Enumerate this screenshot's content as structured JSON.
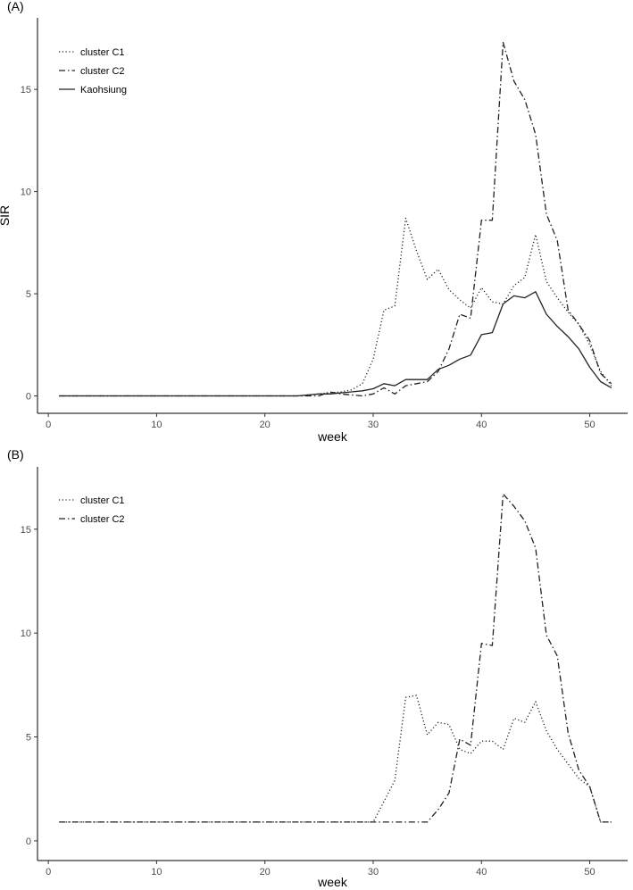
{
  "chart_data": [
    {
      "type": "line",
      "panel_label": "(A)",
      "xlabel": "week",
      "ylabel": "SIR",
      "xlim": [
        -1,
        53.5
      ],
      "ylim": [
        -0.85,
        18.5
      ],
      "xticks": [
        0,
        10,
        20,
        30,
        40,
        50
      ],
      "yticks": [
        0,
        5,
        10,
        15
      ],
      "grid": false,
      "legend_position": "top-left",
      "series": [
        {
          "name": "cluster C1",
          "style": "dotted",
          "x": [
            1,
            2,
            3,
            4,
            5,
            6,
            7,
            8,
            9,
            10,
            11,
            12,
            13,
            14,
            15,
            16,
            17,
            18,
            19,
            20,
            21,
            22,
            23,
            24,
            25,
            26,
            27,
            28,
            29,
            30,
            31,
            32,
            33,
            34,
            35,
            36,
            37,
            38,
            39,
            40,
            41,
            42,
            43,
            44,
            45,
            46,
            47,
            48,
            49,
            50,
            51,
            52
          ],
          "y": [
            0,
            0,
            0,
            0,
            0,
            0,
            0,
            0,
            0,
            0,
            0,
            0,
            0,
            0,
            0,
            0,
            0,
            0,
            0,
            0,
            0,
            0,
            0,
            0.05,
            0.1,
            0.15,
            0.2,
            0.3,
            0.6,
            1.8,
            4.2,
            4.4,
            8.7,
            7.1,
            5.7,
            6.2,
            5.2,
            4.7,
            4.3,
            5.3,
            4.6,
            4.5,
            5.4,
            5.8,
            7.9,
            5.6,
            4.8,
            4.1,
            3.5,
            2.5,
            1.2,
            0.5
          ]
        },
        {
          "name": "cluster C2",
          "style": "dotdash",
          "x": [
            1,
            2,
            3,
            4,
            5,
            6,
            7,
            8,
            9,
            10,
            11,
            12,
            13,
            14,
            15,
            16,
            17,
            18,
            19,
            20,
            21,
            22,
            23,
            24,
            25,
            26,
            27,
            28,
            29,
            30,
            31,
            32,
            33,
            34,
            35,
            36,
            37,
            38,
            39,
            40,
            41,
            42,
            43,
            44,
            45,
            46,
            47,
            48,
            49,
            50,
            51,
            52
          ],
          "y": [
            0,
            0,
            0,
            0,
            0,
            0,
            0,
            0,
            0,
            0,
            0,
            0,
            0,
            0,
            0,
            0,
            0,
            0,
            0,
            0,
            0,
            0,
            0,
            0,
            0,
            0.2,
            0.1,
            0.05,
            0,
            0.1,
            0.4,
            0.1,
            0.5,
            0.6,
            0.7,
            1.2,
            2.3,
            4.0,
            3.8,
            8.6,
            8.6,
            17.3,
            15.4,
            14.5,
            12.8,
            8.9,
            7.6,
            4.2,
            3.5,
            2.7,
            1.1,
            0.6
          ]
        },
        {
          "name": "Kaohsiung",
          "style": "solid",
          "x": [
            1,
            2,
            3,
            4,
            5,
            6,
            7,
            8,
            9,
            10,
            11,
            12,
            13,
            14,
            15,
            16,
            17,
            18,
            19,
            20,
            21,
            22,
            23,
            24,
            25,
            26,
            27,
            28,
            29,
            30,
            31,
            32,
            33,
            34,
            35,
            36,
            37,
            38,
            39,
            40,
            41,
            42,
            43,
            44,
            45,
            46,
            47,
            48,
            49,
            50,
            51,
            52
          ],
          "y": [
            0,
            0,
            0,
            0,
            0,
            0,
            0,
            0,
            0,
            0,
            0,
            0,
            0,
            0,
            0,
            0,
            0,
            0,
            0,
            0,
            0,
            0,
            0,
            0.05,
            0.1,
            0.1,
            0.15,
            0.2,
            0.25,
            0.35,
            0.6,
            0.5,
            0.8,
            0.8,
            0.8,
            1.3,
            1.5,
            1.8,
            2.0,
            3.0,
            3.1,
            4.5,
            4.9,
            4.8,
            5.1,
            4.0,
            3.4,
            2.9,
            2.3,
            1.4,
            0.7,
            0.4
          ]
        }
      ]
    },
    {
      "type": "line",
      "panel_label": "(B)",
      "xlabel": "week",
      "ylabel": "",
      "xlim": [
        -1,
        53.5
      ],
      "ylim": [
        -0.95,
        18.0
      ],
      "xticks": [
        0,
        10,
        20,
        30,
        40,
        50
      ],
      "yticks": [
        0,
        5,
        10,
        15
      ],
      "grid": false,
      "legend_position": "top-left",
      "series": [
        {
          "name": "cluster C1",
          "style": "dotted",
          "x": [
            1,
            2,
            3,
            4,
            5,
            6,
            7,
            8,
            9,
            10,
            11,
            12,
            13,
            14,
            15,
            16,
            17,
            18,
            19,
            20,
            21,
            22,
            23,
            24,
            25,
            26,
            27,
            28,
            29,
            30,
            31,
            32,
            33,
            34,
            35,
            36,
            37,
            38,
            39,
            40,
            41,
            42,
            43,
            44,
            45,
            46,
            47,
            48,
            49,
            50,
            51,
            52
          ],
          "y": [
            0.9,
            0.9,
            0.9,
            0.9,
            0.9,
            0.9,
            0.9,
            0.9,
            0.9,
            0.9,
            0.9,
            0.9,
            0.9,
            0.9,
            0.9,
            0.9,
            0.9,
            0.9,
            0.9,
            0.9,
            0.9,
            0.9,
            0.9,
            0.9,
            0.9,
            0.9,
            0.9,
            0.9,
            0.9,
            0.9,
            1.9,
            2.9,
            6.9,
            7.0,
            5.1,
            5.7,
            5.6,
            4.4,
            4.2,
            4.8,
            4.8,
            4.4,
            5.9,
            5.7,
            6.7,
            5.3,
            4.4,
            3.7,
            3.0,
            2.6,
            0.9,
            0.9
          ]
        },
        {
          "name": "cluster C2",
          "style": "dotdash",
          "x": [
            1,
            2,
            3,
            4,
            5,
            6,
            7,
            8,
            9,
            10,
            11,
            12,
            13,
            14,
            15,
            16,
            17,
            18,
            19,
            20,
            21,
            22,
            23,
            24,
            25,
            26,
            27,
            28,
            29,
            30,
            31,
            32,
            33,
            34,
            35,
            36,
            37,
            38,
            39,
            40,
            41,
            42,
            43,
            44,
            45,
            46,
            47,
            48,
            49,
            50,
            51,
            52
          ],
          "y": [
            0.9,
            0.9,
            0.9,
            0.9,
            0.9,
            0.9,
            0.9,
            0.9,
            0.9,
            0.9,
            0.9,
            0.9,
            0.9,
            0.9,
            0.9,
            0.9,
            0.9,
            0.9,
            0.9,
            0.9,
            0.9,
            0.9,
            0.9,
            0.9,
            0.9,
            0.9,
            0.9,
            0.9,
            0.9,
            0.9,
            0.9,
            0.9,
            0.9,
            0.9,
            0.9,
            1.5,
            2.3,
            4.9,
            4.6,
            9.5,
            9.4,
            16.7,
            16.1,
            15.4,
            14.1,
            9.9,
            8.9,
            5.2,
            3.4,
            2.6,
            0.9,
            0.9
          ]
        }
      ]
    }
  ]
}
